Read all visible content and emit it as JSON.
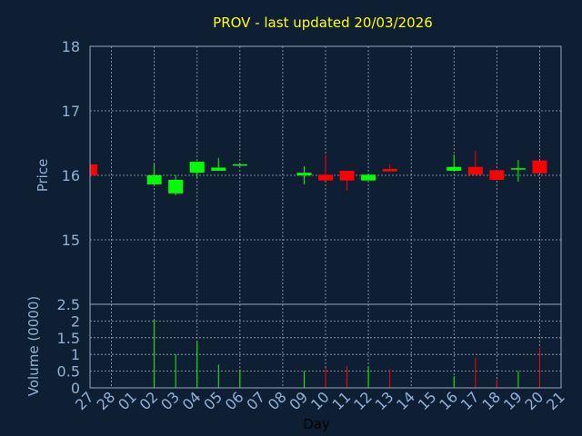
{
  "chart_data": [
    {
      "type": "candlestick",
      "title": "PROV - last updated 20/03/2026",
      "ylabel": "Price",
      "categories": [
        "27",
        "28",
        "01",
        "02",
        "03",
        "04",
        "05",
        "06",
        "07",
        "08",
        "09",
        "10",
        "11",
        "12",
        "13",
        "14",
        "15",
        "16",
        "17",
        "18",
        "19",
        "20",
        "21"
      ],
      "open": [
        16.17,
        null,
        null,
        15.86,
        15.72,
        16.04,
        16.07,
        16.15,
        null,
        null,
        16.0,
        16.01,
        16.07,
        15.92,
        16.1,
        null,
        null,
        16.07,
        16.13,
        16.08,
        16.09,
        16.23,
        null
      ],
      "high": [
        16.17,
        null,
        null,
        16.18,
        16.0,
        16.21,
        16.27,
        16.18,
        null,
        null,
        16.14,
        16.32,
        16.07,
        16.01,
        16.17,
        null,
        null,
        16.32,
        16.38,
        16.08,
        16.24,
        16.23,
        null
      ],
      "low": [
        16.0,
        null,
        null,
        15.86,
        15.69,
        15.96,
        16.07,
        16.14,
        null,
        null,
        15.86,
        15.92,
        15.76,
        15.92,
        16.06,
        null,
        null,
        16.07,
        16.01,
        15.93,
        15.9,
        16.03,
        null
      ],
      "close": [
        16.0,
        null,
        null,
        16.0,
        15.93,
        16.21,
        16.12,
        16.17,
        null,
        null,
        16.04,
        15.92,
        15.92,
        16.01,
        16.06,
        null,
        null,
        16.13,
        16.01,
        15.93,
        16.11,
        16.03,
        null
      ],
      "up_color": "#00ff00",
      "down_color": "#ff0000",
      "ylim": [
        14,
        18
      ],
      "yticks": [
        15,
        16,
        17,
        18
      ],
      "grid": true
    },
    {
      "type": "bar",
      "ylabel": "Volume (0000)",
      "xlabel": "Day",
      "values": [
        0,
        null,
        null,
        2.05,
        1.0,
        1.4,
        0.7,
        0.55,
        null,
        null,
        0.5,
        0.6,
        0.65,
        0.65,
        0.55,
        null,
        null,
        0.35,
        0.9,
        0.25,
        0.5,
        1.2,
        null
      ],
      "ylim": [
        0,
        2.5
      ],
      "yticks": [
        0,
        0.5,
        1,
        1.5,
        2,
        2.5
      ],
      "grid": true
    }
  ]
}
